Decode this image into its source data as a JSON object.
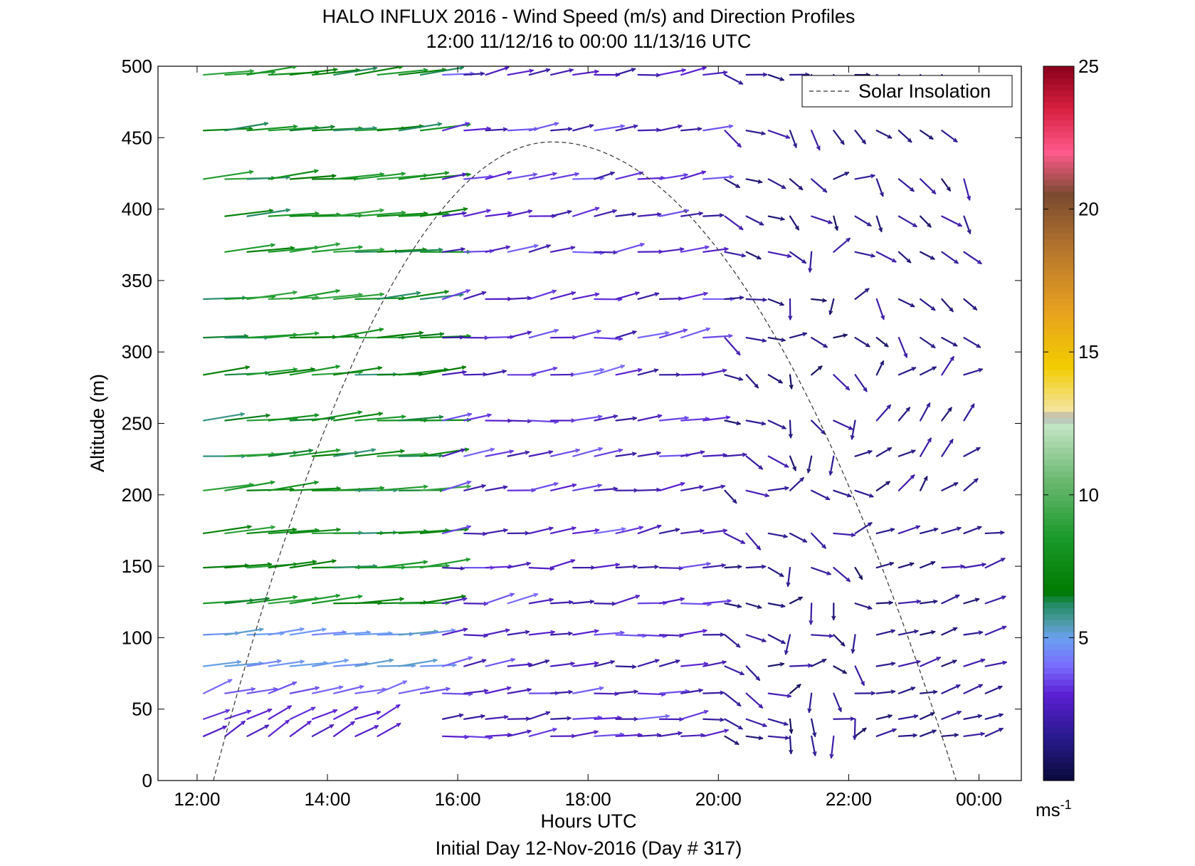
{
  "chart_data": {
    "type": "quiver",
    "title": "HALO INFLUX 2016 - Wind Speed (m/s) and Direction Profiles",
    "subtitle": "12:00 11/12/16 to 00:00 11/13/16  UTC",
    "xlabel": "Hours UTC",
    "footer": "Initial Day 12-Nov-2016 (Day # 317)",
    "ylabel": "Altitude (m)",
    "xlim": [
      11.4,
      24.65
    ],
    "ylim": [
      0,
      500
    ],
    "x_ticks": [
      {
        "value": 12,
        "label": "12:00"
      },
      {
        "value": 14,
        "label": "14:00"
      },
      {
        "value": 16,
        "label": "16:00"
      },
      {
        "value": 18,
        "label": "18:00"
      },
      {
        "value": 20,
        "label": "20:00"
      },
      {
        "value": 22,
        "label": "22:00"
      },
      {
        "value": 24,
        "label": "00:00"
      }
    ],
    "y_ticks": [
      {
        "value": 0,
        "label": "0"
      },
      {
        "value": 50,
        "label": "50"
      },
      {
        "value": 100,
        "label": "100"
      },
      {
        "value": 150,
        "label": "150"
      },
      {
        "value": 200,
        "label": "200"
      },
      {
        "value": 250,
        "label": "250"
      },
      {
        "value": 300,
        "label": "300"
      },
      {
        "value": 350,
        "label": "350"
      },
      {
        "value": 400,
        "label": "400"
      },
      {
        "value": 450,
        "label": "450"
      },
      {
        "value": 500,
        "label": "500"
      }
    ],
    "legend": {
      "label": "Solar Insolation",
      "position": "top-right",
      "line_style": "dashed"
    },
    "solar_insolation": {
      "start_hour": 12.25,
      "end_hour": 23.65,
      "peak_hour": 17.45,
      "peak_altitude": 447
    },
    "colorbar": {
      "range": [
        0,
        25
      ],
      "ticks": [
        {
          "value": 5,
          "label": "5"
        },
        {
          "value": 10,
          "label": "10"
        },
        {
          "value": 15,
          "label": "15"
        },
        {
          "value": 20,
          "label": "20"
        },
        {
          "value": 25,
          "label": "25"
        }
      ],
      "unit_label": "ms",
      "unit_exp": "-1",
      "colors": [
        {
          "v": 0,
          "c": "#0a0a3a"
        },
        {
          "v": 1.5,
          "c": "#281a8c"
        },
        {
          "v": 3,
          "c": "#5a1ed2"
        },
        {
          "v": 4,
          "c": "#7a6cff"
        },
        {
          "v": 5,
          "c": "#6aa0f0"
        },
        {
          "v": 5.6,
          "c": "#4a9aa0"
        },
        {
          "v": 6.2,
          "c": "#208a60"
        },
        {
          "v": 6.6,
          "c": "#007a00"
        },
        {
          "v": 8.5,
          "c": "#1a9a2a"
        },
        {
          "v": 10.5,
          "c": "#6ab870"
        },
        {
          "v": 12.5,
          "c": "#c6e6c6"
        },
        {
          "v": 12.7,
          "c": "#b0b0b0"
        },
        {
          "v": 13,
          "c": "#f4e49c"
        },
        {
          "v": 14.5,
          "c": "#f2cc00"
        },
        {
          "v": 16.5,
          "c": "#e6a020"
        },
        {
          "v": 18.5,
          "c": "#b8782c"
        },
        {
          "v": 20.5,
          "c": "#7a4a30"
        },
        {
          "v": 22,
          "c": "#ff5a8c"
        },
        {
          "v": 23.5,
          "c": "#d82040"
        },
        {
          "v": 25,
          "c": "#8a001a"
        }
      ]
    },
    "altitudes": [
      31,
      43,
      61,
      80,
      102,
      124,
      149,
      173,
      203,
      227,
      252,
      284,
      310,
      337,
      370,
      395,
      421,
      455,
      494
    ],
    "hours": [
      12.1,
      12.43,
      12.77,
      13.1,
      13.43,
      13.77,
      14.1,
      14.43,
      14.77,
      15.1,
      15.43,
      15.77,
      16.1,
      16.43,
      16.77,
      17.1,
      17.43,
      17.77,
      18.1,
      18.43,
      18.77,
      19.1,
      19.43,
      19.77,
      20.1,
      20.43,
      20.77,
      21.1,
      21.43,
      21.77,
      22.1,
      22.43,
      22.77,
      23.1,
      23.43,
      23.77,
      24.1
    ],
    "wind_regimes": [
      {
        "hours": [
          12.0,
          15.6
        ],
        "altitudes": [
          75,
          500
        ],
        "speed_range": [
          5,
          9
        ],
        "direction_deg": 265,
        "note": "westerly, green/teal colors"
      },
      {
        "hours": [
          12.0,
          15.6
        ],
        "altitudes": [
          0,
          75
        ],
        "speed_range": [
          1.5,
          4
        ],
        "direction_deg": 225,
        "note": "southwesterly near surface"
      },
      {
        "hours": [
          15.6,
          20.9
        ],
        "altitudes": [
          0,
          500
        ],
        "speed_range": [
          1,
          4
        ],
        "direction_deg": 265,
        "note": "westerly, violet colors"
      },
      {
        "hours": [
          20.9,
          22.3
        ],
        "altitudes": [
          0,
          500
        ],
        "speed_range": [
          0.5,
          2.5
        ],
        "direction_deg": "variable"
      },
      {
        "hours": [
          22.3,
          24.1
        ],
        "altitudes": [
          0,
          500
        ],
        "speed_range": [
          0.5,
          2.5
        ],
        "direction_deg": "variable (NW aloft, SW/W below)"
      }
    ]
  }
}
